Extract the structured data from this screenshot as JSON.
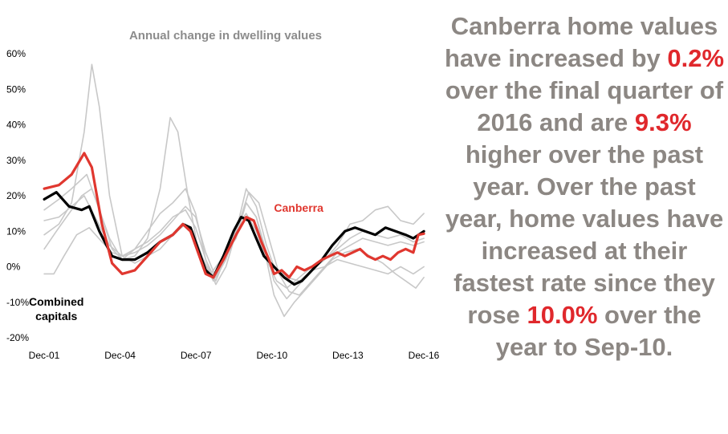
{
  "commentary": {
    "p1": "Canberra home values have increased by ",
    "v1": "0.2%",
    "p2": " over the final quarter of 2016 and are ",
    "v2": "9.3%",
    "p3": " higher over the past year.  Over the past year, home values have increased at their fastest rate since they rose ",
    "v3": "10.0%",
    "p4": " over the year to Sep-10."
  },
  "colors": {
    "canberra": "#e0372f",
    "combined": "#000000",
    "others": "#c8c8c8",
    "title": "#8c8c8c",
    "highlight": "#e0282c"
  },
  "chart_data": {
    "type": "line",
    "title": "Annual change in dwelling values",
    "xlabel": "",
    "ylabel": "",
    "x_tick_labels": [
      "Dec-01",
      "Dec-04",
      "Dec-07",
      "Dec-10",
      "Dec-13",
      "Dec-16"
    ],
    "x_tick_years": [
      2001.917,
      2004.917,
      2007.917,
      2010.917,
      2013.917,
      2016.917
    ],
    "x_range": [
      2001.917,
      2016.917
    ],
    "y_tick_labels": [
      "60%",
      "50%",
      "40%",
      "30%",
      "20%",
      "10%",
      "0%",
      "-10%",
      "-20%"
    ],
    "y_ticks": [
      60,
      50,
      40,
      30,
      20,
      10,
      0,
      -10,
      -20
    ],
    "ylim": [
      -20,
      60
    ],
    "grid": false,
    "series": [
      {
        "name": "Canberra",
        "role": "canberra",
        "points": [
          [
            2001.92,
            22
          ],
          [
            2002.5,
            23
          ],
          [
            2003.0,
            26
          ],
          [
            2003.5,
            32
          ],
          [
            2003.8,
            28
          ],
          [
            2004.2,
            12
          ],
          [
            2004.6,
            1
          ],
          [
            2005.0,
            -2
          ],
          [
            2005.5,
            -1
          ],
          [
            2006.0,
            3
          ],
          [
            2006.5,
            7
          ],
          [
            2007.0,
            9
          ],
          [
            2007.4,
            12
          ],
          [
            2007.7,
            10
          ],
          [
            2008.0,
            4
          ],
          [
            2008.3,
            -2
          ],
          [
            2008.6,
            -3
          ],
          [
            2009.0,
            2
          ],
          [
            2009.5,
            9
          ],
          [
            2009.9,
            14
          ],
          [
            2010.2,
            13
          ],
          [
            2010.5,
            7
          ],
          [
            2010.8,
            2
          ],
          [
            2011.0,
            -2
          ],
          [
            2011.3,
            -1
          ],
          [
            2011.6,
            -3
          ],
          [
            2011.9,
            0
          ],
          [
            2012.2,
            -1
          ],
          [
            2012.5,
            0
          ],
          [
            2012.9,
            2
          ],
          [
            2013.2,
            3
          ],
          [
            2013.5,
            4
          ],
          [
            2013.8,
            3
          ],
          [
            2014.1,
            4
          ],
          [
            2014.4,
            5
          ],
          [
            2014.7,
            3
          ],
          [
            2015.0,
            2
          ],
          [
            2015.3,
            3
          ],
          [
            2015.6,
            2
          ],
          [
            2015.9,
            4
          ],
          [
            2016.2,
            5
          ],
          [
            2016.5,
            4
          ],
          [
            2016.7,
            9
          ],
          [
            2016.92,
            9.3
          ]
        ]
      },
      {
        "name": "Combined capitals",
        "role": "combined",
        "points": [
          [
            2001.92,
            19
          ],
          [
            2002.4,
            21
          ],
          [
            2002.9,
            17
          ],
          [
            2003.4,
            16
          ],
          [
            2003.7,
            17
          ],
          [
            2004.1,
            10
          ],
          [
            2004.6,
            3
          ],
          [
            2005.0,
            2
          ],
          [
            2005.5,
            2
          ],
          [
            2006.0,
            4
          ],
          [
            2006.5,
            7
          ],
          [
            2007.0,
            9
          ],
          [
            2007.4,
            12
          ],
          [
            2007.7,
            11
          ],
          [
            2008.0,
            5
          ],
          [
            2008.3,
            -1
          ],
          [
            2008.6,
            -3
          ],
          [
            2009.0,
            3
          ],
          [
            2009.4,
            10
          ],
          [
            2009.7,
            14
          ],
          [
            2010.0,
            13
          ],
          [
            2010.3,
            8
          ],
          [
            2010.6,
            3
          ],
          [
            2011.0,
            0
          ],
          [
            2011.4,
            -3
          ],
          [
            2011.8,
            -5
          ],
          [
            2012.1,
            -4
          ],
          [
            2012.5,
            -1
          ],
          [
            2012.9,
            2
          ],
          [
            2013.3,
            6
          ],
          [
            2013.8,
            10
          ],
          [
            2014.2,
            11
          ],
          [
            2014.6,
            10
          ],
          [
            2015.0,
            9
          ],
          [
            2015.4,
            11
          ],
          [
            2015.8,
            10
          ],
          [
            2016.2,
            9
          ],
          [
            2016.5,
            8
          ],
          [
            2016.92,
            10
          ]
        ]
      },
      {
        "role": "other",
        "points": [
          [
            2001.92,
            9
          ],
          [
            2002.5,
            12
          ],
          [
            2003.0,
            18
          ],
          [
            2003.5,
            38
          ],
          [
            2003.8,
            57
          ],
          [
            2004.1,
            45
          ],
          [
            2004.5,
            20
          ],
          [
            2005.0,
            3
          ],
          [
            2005.5,
            1
          ],
          [
            2006.0,
            3
          ],
          [
            2006.5,
            5
          ],
          [
            2007.0,
            9
          ],
          [
            2007.5,
            12
          ],
          [
            2007.8,
            10
          ],
          [
            2008.2,
            2
          ],
          [
            2008.6,
            -4
          ],
          [
            2009.0,
            1
          ],
          [
            2009.5,
            10
          ],
          [
            2009.9,
            22
          ],
          [
            2010.3,
            17
          ],
          [
            2010.7,
            6
          ],
          [
            2011.0,
            0
          ],
          [
            2011.5,
            -3
          ],
          [
            2012.0,
            -4
          ],
          [
            2012.5,
            -1
          ],
          [
            2013.0,
            2
          ],
          [
            2013.5,
            6
          ],
          [
            2014.0,
            12
          ],
          [
            2014.5,
            13
          ],
          [
            2015.0,
            16
          ],
          [
            2015.5,
            17
          ],
          [
            2016.0,
            13
          ],
          [
            2016.5,
            12
          ],
          [
            2016.92,
            15
          ]
        ]
      },
      {
        "role": "other",
        "points": [
          [
            2001.92,
            16
          ],
          [
            2002.5,
            19
          ],
          [
            2003.0,
            22
          ],
          [
            2003.6,
            26
          ],
          [
            2004.0,
            18
          ],
          [
            2004.5,
            8
          ],
          [
            2005.0,
            2
          ],
          [
            2005.5,
            3
          ],
          [
            2006.0,
            8
          ],
          [
            2006.5,
            22
          ],
          [
            2006.9,
            42
          ],
          [
            2007.2,
            38
          ],
          [
            2007.6,
            20
          ],
          [
            2008.0,
            5
          ],
          [
            2008.5,
            -2
          ],
          [
            2009.0,
            3
          ],
          [
            2009.5,
            8
          ],
          [
            2009.9,
            18
          ],
          [
            2010.3,
            14
          ],
          [
            2010.7,
            4
          ],
          [
            2011.0,
            -4
          ],
          [
            2011.5,
            -9
          ],
          [
            2012.0,
            -5
          ],
          [
            2012.5,
            -1
          ],
          [
            2013.0,
            0
          ],
          [
            2013.5,
            2
          ],
          [
            2014.0,
            1
          ],
          [
            2014.5,
            0
          ],
          [
            2015.0,
            -1
          ],
          [
            2015.5,
            -2
          ],
          [
            2016.0,
            0
          ],
          [
            2016.5,
            -2
          ],
          [
            2016.92,
            0
          ]
        ]
      },
      {
        "role": "other",
        "points": [
          [
            2001.92,
            5
          ],
          [
            2002.4,
            10
          ],
          [
            2002.9,
            15
          ],
          [
            2003.4,
            20
          ],
          [
            2003.8,
            22
          ],
          [
            2004.2,
            14
          ],
          [
            2004.6,
            5
          ],
          [
            2005.0,
            2
          ],
          [
            2005.5,
            5
          ],
          [
            2006.0,
            10
          ],
          [
            2006.5,
            15
          ],
          [
            2007.0,
            18
          ],
          [
            2007.5,
            22
          ],
          [
            2007.9,
            15
          ],
          [
            2008.3,
            2
          ],
          [
            2008.7,
            -5
          ],
          [
            2009.1,
            0
          ],
          [
            2009.6,
            12
          ],
          [
            2010.0,
            21
          ],
          [
            2010.4,
            18
          ],
          [
            2010.8,
            8
          ],
          [
            2011.2,
            -2
          ],
          [
            2011.6,
            -7
          ],
          [
            2012.0,
            -8
          ],
          [
            2012.5,
            -4
          ],
          [
            2013.0,
            0
          ],
          [
            2013.5,
            4
          ],
          [
            2014.0,
            6
          ],
          [
            2014.5,
            8
          ],
          [
            2015.0,
            7
          ],
          [
            2015.5,
            6
          ],
          [
            2016.0,
            7
          ],
          [
            2016.5,
            6
          ],
          [
            2016.92,
            7
          ]
        ]
      },
      {
        "role": "other",
        "points": [
          [
            2001.92,
            13
          ],
          [
            2002.5,
            14
          ],
          [
            2003.0,
            17
          ],
          [
            2003.5,
            20
          ],
          [
            2004.0,
            13
          ],
          [
            2004.5,
            6
          ],
          [
            2005.0,
            3
          ],
          [
            2005.5,
            4
          ],
          [
            2006.0,
            6
          ],
          [
            2006.5,
            9
          ],
          [
            2007.0,
            13
          ],
          [
            2007.5,
            17
          ],
          [
            2007.9,
            14
          ],
          [
            2008.3,
            4
          ],
          [
            2008.7,
            -3
          ],
          [
            2009.1,
            2
          ],
          [
            2009.5,
            10
          ],
          [
            2009.9,
            18
          ],
          [
            2010.3,
            14
          ],
          [
            2010.7,
            2
          ],
          [
            2011.0,
            -8
          ],
          [
            2011.4,
            -14
          ],
          [
            2011.8,
            -10
          ],
          [
            2012.3,
            -6
          ],
          [
            2012.8,
            -2
          ],
          [
            2013.3,
            2
          ],
          [
            2013.8,
            4
          ],
          [
            2014.3,
            5
          ],
          [
            2014.8,
            3
          ],
          [
            2015.3,
            1
          ],
          [
            2015.8,
            -2
          ],
          [
            2016.2,
            -4
          ],
          [
            2016.6,
            -6
          ],
          [
            2016.92,
            -3
          ]
        ]
      },
      {
        "role": "other",
        "points": [
          [
            2001.92,
            -2
          ],
          [
            2002.3,
            -2
          ],
          [
            2002.7,
            3
          ],
          [
            2003.2,
            9
          ],
          [
            2003.7,
            11
          ],
          [
            2004.2,
            7
          ],
          [
            2004.6,
            4
          ],
          [
            2005.0,
            3
          ],
          [
            2005.5,
            5
          ],
          [
            2006.0,
            7
          ],
          [
            2006.5,
            10
          ],
          [
            2007.0,
            14
          ],
          [
            2007.5,
            16
          ],
          [
            2007.9,
            11
          ],
          [
            2008.3,
            2
          ],
          [
            2008.7,
            -4
          ],
          [
            2009.1,
            3
          ],
          [
            2009.5,
            11
          ],
          [
            2009.9,
            15
          ],
          [
            2010.3,
            10
          ],
          [
            2010.7,
            2
          ],
          [
            2011.1,
            -4
          ],
          [
            2011.5,
            -6
          ],
          [
            2012.0,
            -3
          ],
          [
            2012.5,
            0
          ],
          [
            2013.0,
            2
          ],
          [
            2013.5,
            5
          ],
          [
            2014.0,
            8
          ],
          [
            2014.5,
            10
          ],
          [
            2015.0,
            9
          ],
          [
            2015.5,
            8
          ],
          [
            2016.0,
            9
          ],
          [
            2016.5,
            7
          ],
          [
            2016.92,
            8
          ]
        ]
      }
    ],
    "annotations": [
      {
        "text": "Canberra",
        "x": 2011.0,
        "y": 15.5,
        "role": "canberra"
      },
      {
        "text": "Combined",
        "x": 2002.4,
        "y": -11,
        "role": "combined"
      },
      {
        "text": "capitals",
        "x": 2002.4,
        "y": -15,
        "role": "combined"
      }
    ]
  }
}
